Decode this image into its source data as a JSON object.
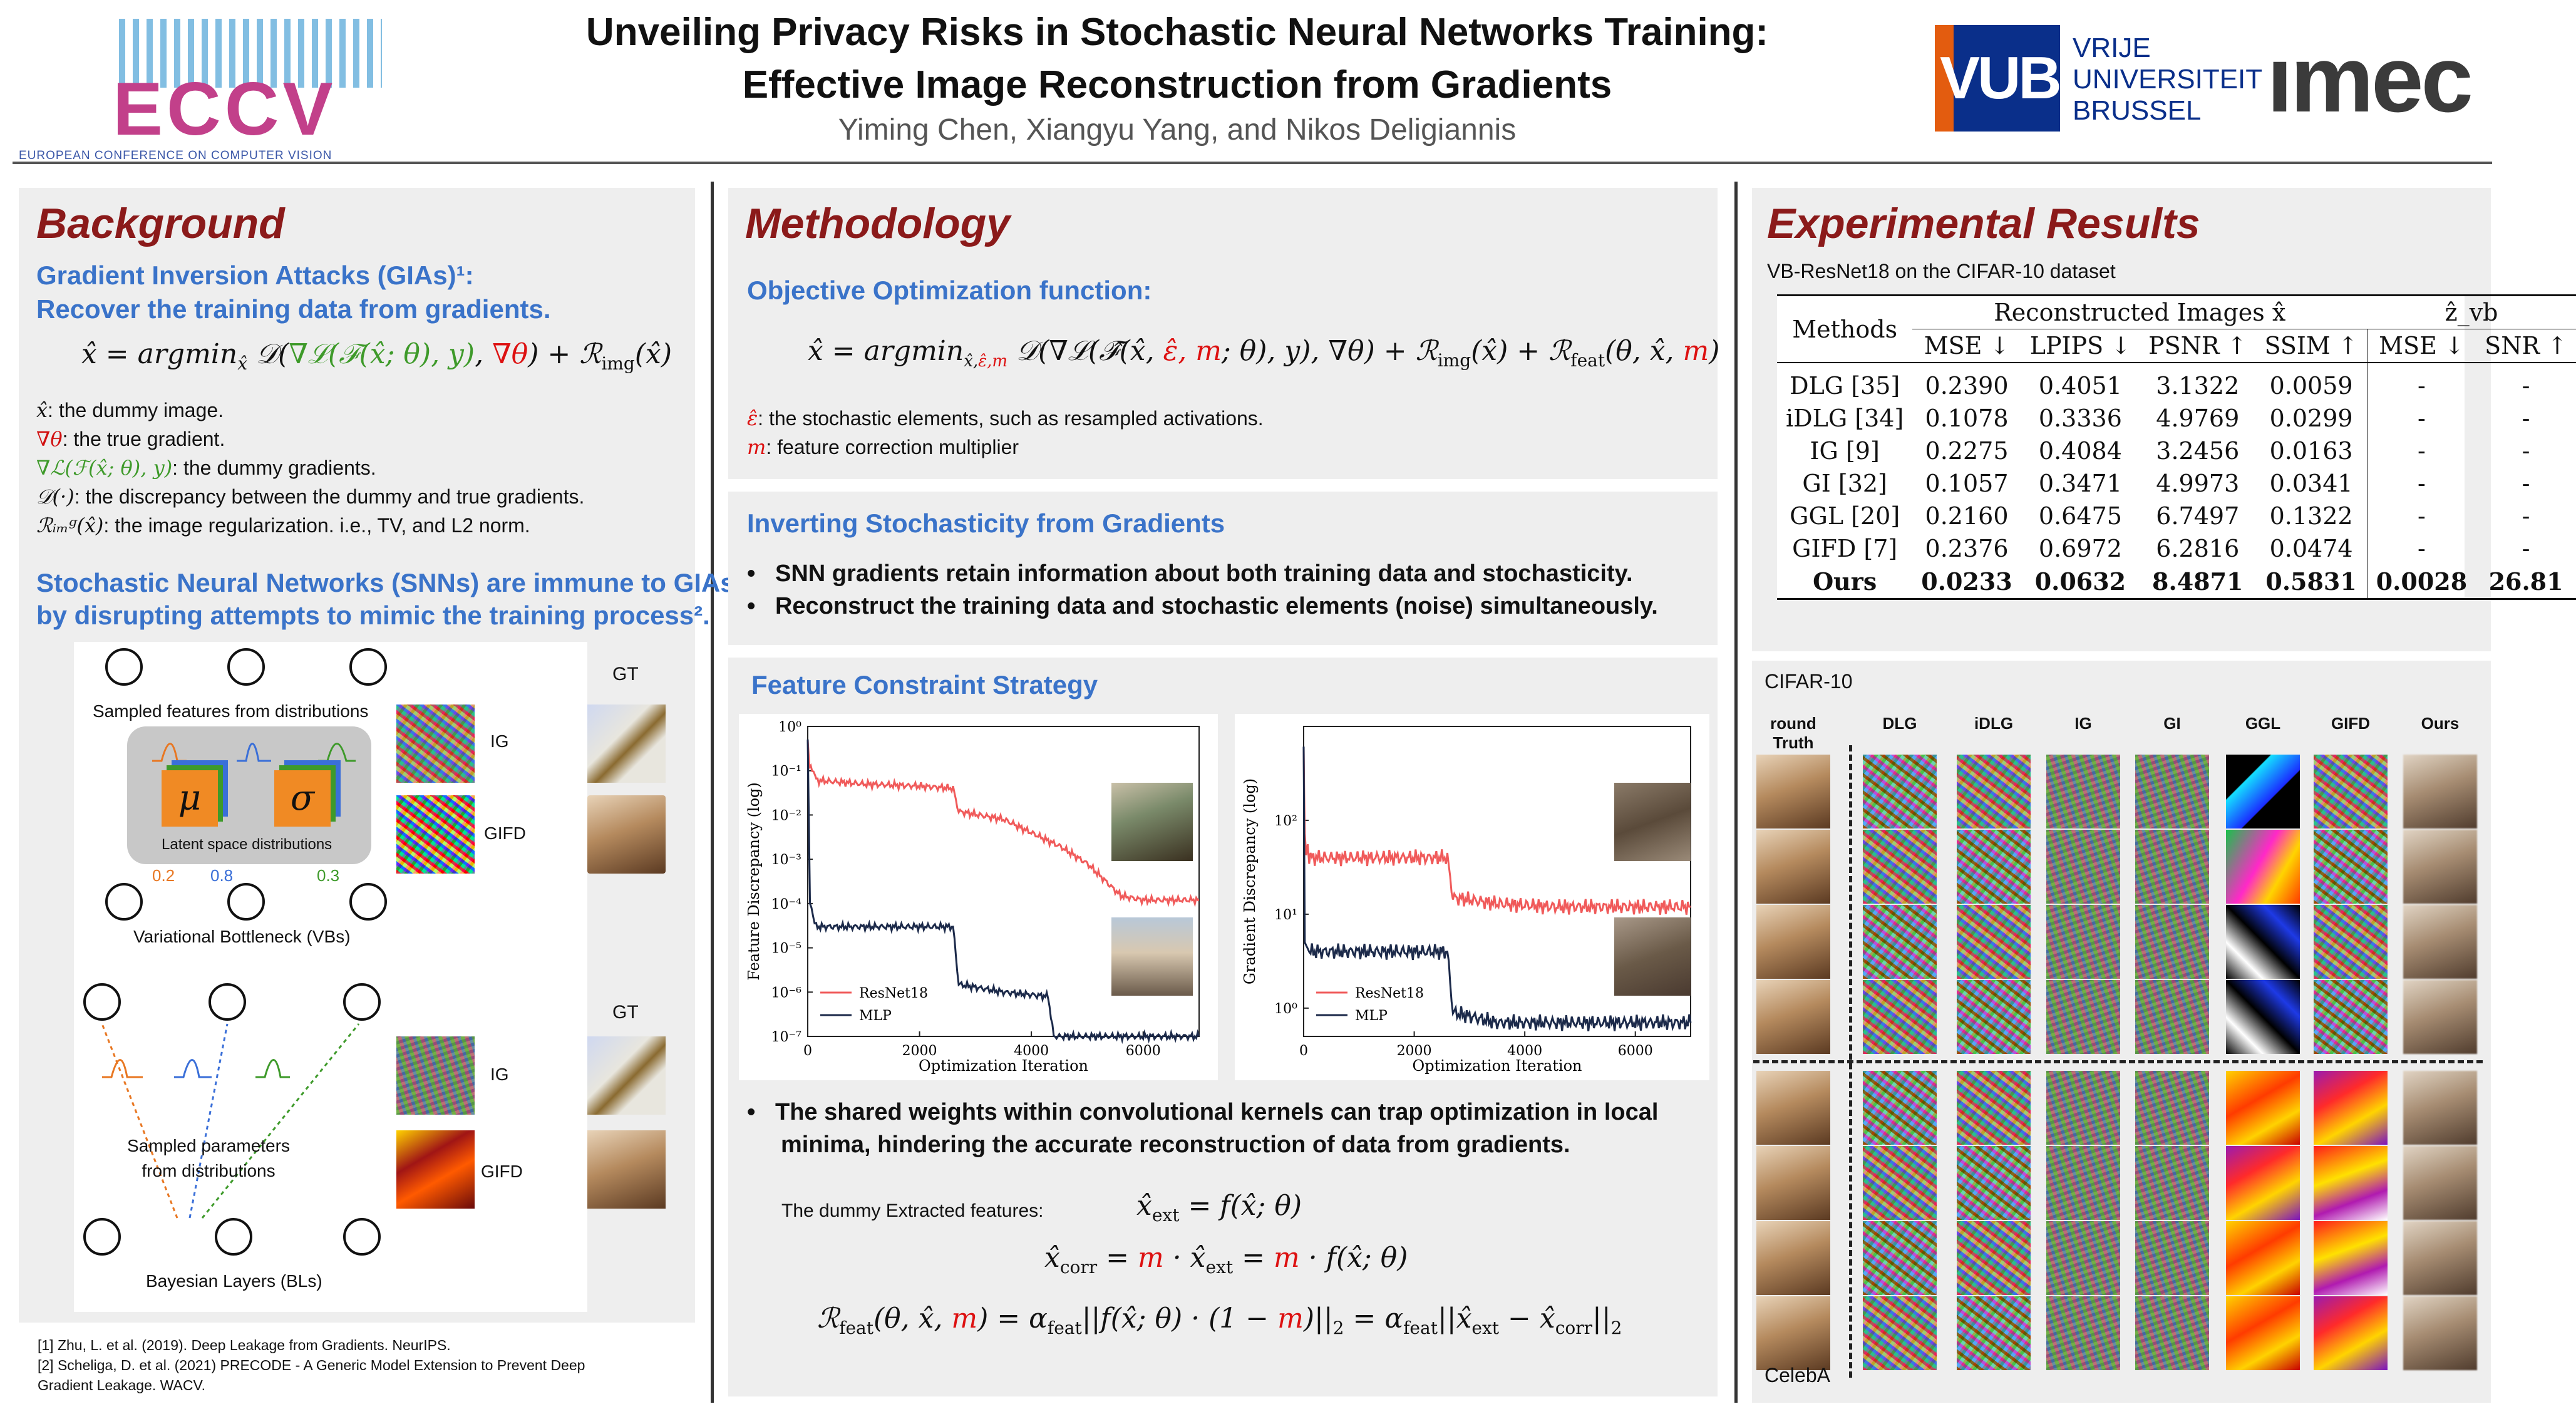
{
  "header": {
    "conf_name": "ECCV",
    "conf_full": "EUROPEAN CONFERENCE ON COMPUTER VISION",
    "title_line1": "Unveiling Privacy Risks in Stochastic Neural Networks Training:",
    "title_line2": "Effective Image Reconstruction from Gradients",
    "authors": "Yiming Chen, Xiangyu Yang, and Nikos Deligiannis",
    "vub": "VUB",
    "vub_line1": "VRIJE",
    "vub_line2": "UNIVERSITEIT",
    "vub_line3": "BRUSSEL",
    "imec": "ımec"
  },
  "background": {
    "title": "Background",
    "gia_heading": "Gradient Inversion Attacks (GIAs)¹:",
    "gia_heading2": "Recover the training data from gradients.",
    "eq_lhs": "x̂ = argmin",
    "eq_sub": "x̂",
    "eq_D": " 𝒟(",
    "eq_dummy": "∇ℒ(ℱ(x̂; θ), y)",
    "eq_comma": ", ",
    "eq_true": "∇θ",
    "eq_rest": ") + ℛ",
    "eq_img_sub": "img",
    "eq_end": "(x̂)",
    "defs": [
      {
        "sym": "x̂",
        "text": ": the dummy image.",
        "color": "#111111"
      },
      {
        "sym": "∇θ",
        "text": ": the true gradient.",
        "color": "#d11111"
      },
      {
        "sym": "∇ℒ(ℱ(x̂; θ), y)",
        "text": ": the dummy gradients.",
        "color": "#3e9a2a"
      },
      {
        "sym": "𝒟(·)",
        "text": ": the discrepancy between the dummy and true gradients.",
        "color": "#111111"
      },
      {
        "sym": "ℛᵢₘᵍ(x̂)",
        "text": ": the image regularization. i.e., TV, and L2 norm.",
        "color": "#111111"
      }
    ],
    "snn_heading": "Stochastic Neural Networks (SNNs) are immune to GIAs",
    "snn_heading2": "by disrupting attempts to mimic the training process².",
    "fig": {
      "sampled_features": "Sampled features from distributions",
      "latent": "Latent space distributions",
      "mu": "μ",
      "sigma": "σ",
      "v1": "0.2",
      "v2": "0.8",
      "v3": "0.3",
      "vb": "Variational Bottleneck (VBs)",
      "gt1": "GT",
      "ig1": "IG",
      "gifd1": "GIFD",
      "gt2": "GT",
      "ig2": "IG",
      "gifd2": "GIFD",
      "sampled_params": "Sampled parameters",
      "from_dist": "from distributions",
      "bl": "Bayesian Layers (BLs)"
    },
    "refs": [
      "[1] Zhu, L. et al. (2019). Deep Leakage from Gradients. NeurIPS.",
      "[2] Scheliga, D. et al. (2021) PRECODE - A Generic Model Extension to Prevent Deep",
      "Gradient Leakage. WACV."
    ]
  },
  "methodology": {
    "title": "Methodology",
    "obj_heading": "Objective Optimization function:",
    "eq_a": "x̂ = argmin",
    "eq_sub_a": "x̂,",
    "eq_sub_b": "ε̂,m",
    "eq_b": " 𝒟(∇ℒ(ℱ̂(x̂, ",
    "eq_eps": "ε̂, m",
    "eq_c": "; θ), y), ∇θ) + ℛ",
    "eq_img": "img",
    "eq_d": "(x̂) + ℛ",
    "eq_feat": "feat",
    "eq_e": "(θ, x̂, ",
    "eq_m": "m",
    "eq_f": ")",
    "def1_sym": "ε̂",
    "def1_text": ": the stochastic elements, such as resampled activations.",
    "def2_sym": "m",
    "def2_text": ": feature correction multiplier",
    "inv_heading": "Inverting Stochasticity from Gradients",
    "bullets1": [
      "SNN gradients retain information about both training data and stochasticity.",
      "Reconstruct the training data and stochastic elements (noise) simultaneously."
    ],
    "fcs_heading": "Feature Constraint Strategy",
    "bullet2a": "The shared weights within convolutional kernels can trap optimization in local",
    "bullet2b": "minima, hindering the accurate reconstruction of data from gradients.",
    "dummy_label": "The dummy Extracted features:",
    "eq_ext": "x̂",
    "eq_ext_sub": "ext",
    "eq_ext_rhs": " = f(x̂; θ)",
    "eq_corr_lhs": "x̂",
    "eq_corr_sub": "corr",
    "eq_corr_eq": " = ",
    "eq_corr_m1": "m",
    "eq_corr_mid": " · x̂",
    "eq_corr_sub2": "ext",
    "eq_corr_eq2": " = ",
    "eq_corr_m2": "m",
    "eq_corr_end": " · f(x̂; θ)",
    "eq_R": "ℛ",
    "eq_R_sub": "feat",
    "eq_R_args": "(θ, x̂, ",
    "eq_R_m": "m",
    "eq_R_mid": ") = α",
    "eq_R_alpha_sub": "feat",
    "eq_R_norm": "||f(x̂; θ) · (1 − ",
    "eq_R_m2": "m",
    "eq_R_norm_end": ")||",
    "eq_R_two": "2",
    "eq_R_eq2": " = α",
    "eq_R_alpha_sub2": "feat",
    "eq_R_norm2": "||x̂",
    "eq_R_ext": "ext",
    "eq_R_minus": " − x̂",
    "eq_R_corr": "corr",
    "eq_R_norm2_end": "||",
    "eq_R_two2": "2"
  },
  "chart_data": [
    {
      "type": "line",
      "xlabel": "Optimization Iteration",
      "ylabel": "Feature Discrepancy (log)",
      "log_y": true,
      "xlim": [
        0,
        7000
      ],
      "ylim": [
        1e-07,
        1
      ],
      "x_ticks": [
        "0",
        "2000",
        "4000",
        "6000"
      ],
      "y_ticks": [
        "10⁰",
        "10⁻¹",
        "10⁻²",
        "10⁻³",
        "10⁻⁴",
        "10⁻⁵",
        "10⁻⁶",
        "10⁻⁷"
      ],
      "legend": "bottom-left",
      "series": [
        {
          "name": "ResNet18",
          "color": "#f05a5a",
          "x": [
            0,
            30,
            200,
            1000,
            2000,
            2600,
            2700,
            3500,
            4200,
            4500,
            5000,
            5600,
            6000,
            6500,
            7000
          ],
          "y": [
            0.5,
            0.12,
            0.06,
            0.05,
            0.045,
            0.04,
            0.012,
            0.008,
            0.003,
            0.002,
            0.0008,
            0.00015,
            0.00012,
            0.00012,
            0.00012
          ]
        },
        {
          "name": "MLP",
          "color": "#1c2a4a",
          "x": [
            0,
            40,
            150,
            1000,
            2000,
            2600,
            2700,
            3500,
            4300,
            4400,
            5000,
            6000,
            7000
          ],
          "y": [
            0.5,
            0.0001,
            3e-05,
            3e-05,
            3e-05,
            3e-05,
            1.5e-06,
            1e-06,
            8e-07,
            1e-07,
            1e-07,
            1e-07,
            1e-07
          ]
        }
      ]
    },
    {
      "type": "line",
      "xlabel": "Optimization Iteration",
      "ylabel": "Gradient Discrepancy (log)",
      "log_y": true,
      "xlim": [
        0,
        7000
      ],
      "ylim": [
        0.5,
        1000
      ],
      "x_ticks": [
        "0",
        "2000",
        "4000",
        "6000"
      ],
      "y_ticks": [
        "10²",
        "10¹",
        "10⁰"
      ],
      "legend": "bottom-left",
      "series": [
        {
          "name": "ResNet18",
          "color": "#f05a5a",
          "x": [
            0,
            20,
            100,
            1000,
            2000,
            2600,
            2700,
            3500,
            4500,
            5500,
            6500,
            7000
          ],
          "y": [
            600,
            60,
            40,
            40,
            40,
            40,
            15,
            13,
            12,
            12,
            12,
            12
          ]
        },
        {
          "name": "MLP",
          "color": "#1c2a4a",
          "x": [
            0,
            20,
            100,
            1000,
            2000,
            2600,
            2700,
            3500,
            4500,
            5500,
            6500,
            7000
          ],
          "y": [
            600,
            5,
            4,
            4,
            4,
            4,
            0.9,
            0.7,
            0.7,
            0.7,
            0.7,
            0.7
          ]
        }
      ]
    }
  ],
  "results": {
    "title": "Experimental Results",
    "subtitle": "VB-ResNet18 on the CIFAR-10 dataset",
    "col_group1": "Reconstructed Images x̂",
    "col_group2": "ẑ_vb",
    "methods_header": "Methods",
    "headers": [
      "MSE ↓",
      "LPIPS ↓",
      "PSNR ↑",
      "SSIM ↑",
      "MSE ↓",
      "SNR ↑"
    ],
    "rows": [
      [
        "DLG [35]",
        "0.2390",
        "0.4051",
        "3.1322",
        "0.0059",
        "-",
        "-"
      ],
      [
        "iDLG [34]",
        "0.1078",
        "0.3336",
        "4.9769",
        "0.0299",
        "-",
        "-"
      ],
      [
        "IG [9]",
        "0.2275",
        "0.4084",
        "3.2456",
        "0.0163",
        "-",
        "-"
      ],
      [
        "GI [32]",
        "0.1057",
        "0.3471",
        "4.9973",
        "0.0341",
        "-",
        "-"
      ],
      [
        "GGL [20]",
        "0.2160",
        "0.6475",
        "6.7497",
        "0.1322",
        "-",
        "-"
      ],
      [
        "GIFD [7]",
        "0.2376",
        "0.6972",
        "6.2816",
        "0.0474",
        "-",
        "-"
      ],
      [
        "Ours",
        "0.0233",
        "0.0632",
        "8.4871",
        "0.5831",
        "0.0028",
        "26.81"
      ]
    ],
    "cifar_label": "CIFAR-10",
    "celeba_label": "CelebA",
    "grid_headers": [
      "round Truth",
      "DLG",
      "iDLG",
      "IG",
      "GI",
      "GGL",
      "GIFD",
      "Ours"
    ]
  }
}
